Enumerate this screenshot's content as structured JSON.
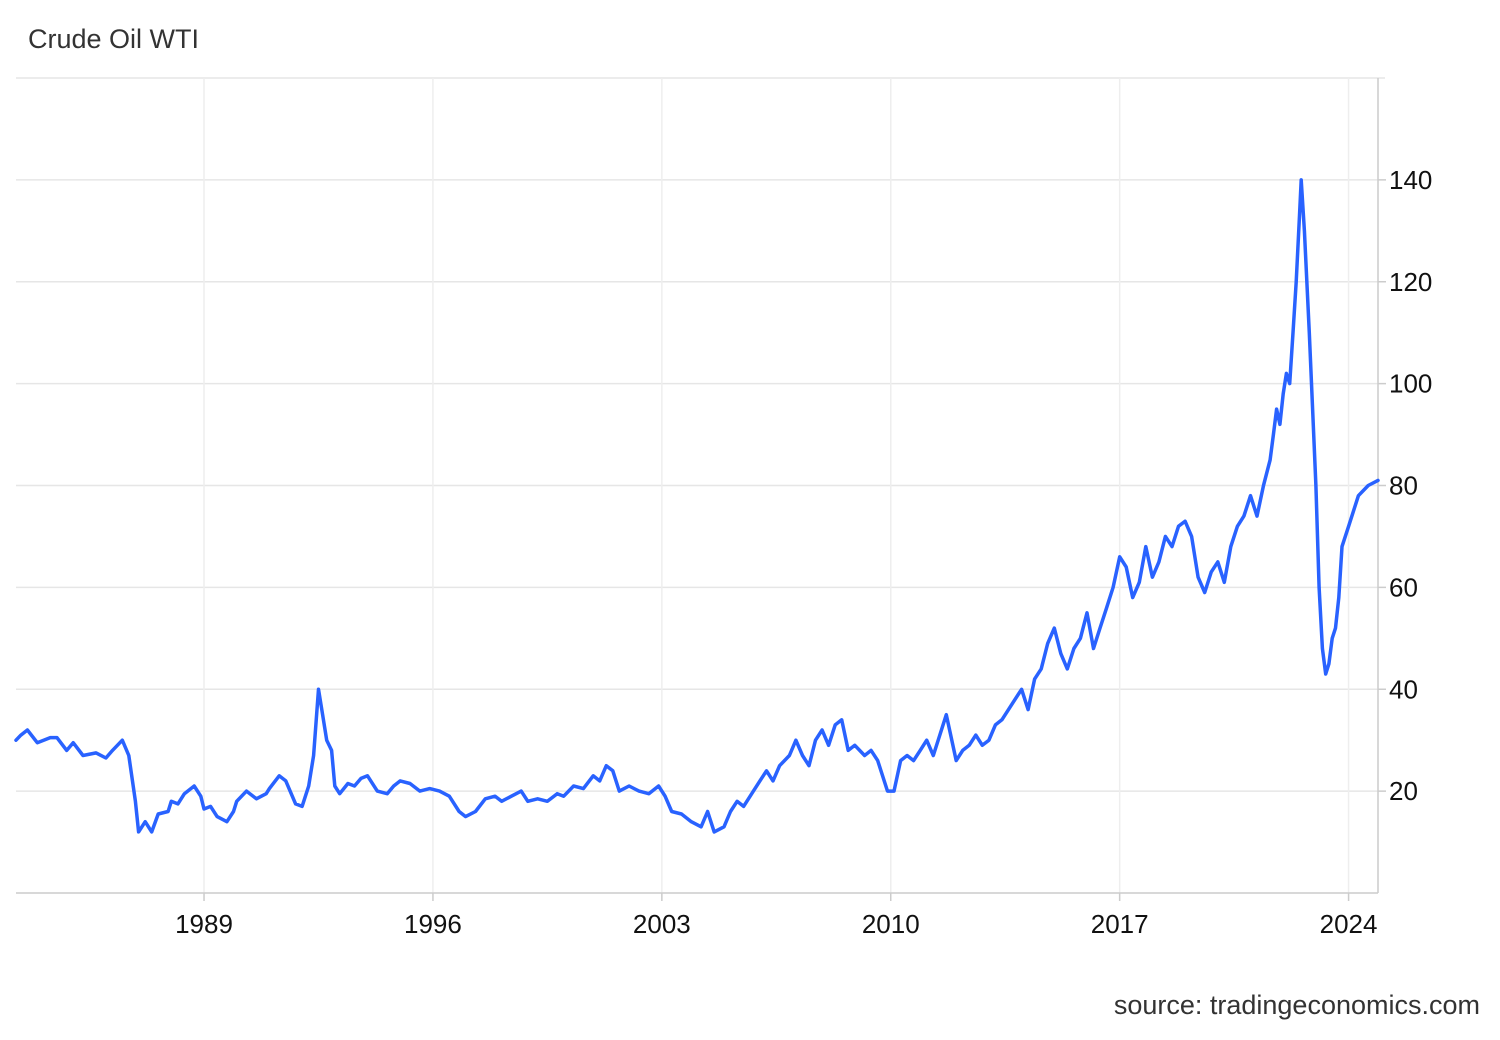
{
  "title": "Crude Oil WTI",
  "source_text": "source: tradingeconomics.com",
  "colors": {
    "line": "#2962ff",
    "grid": "#e6e6e6",
    "axis": "#cccccc",
    "text": "#111111"
  },
  "chart_data": {
    "type": "line",
    "title": "Crude Oil WTI",
    "xlabel": "",
    "ylabel": "",
    "x_range": [
      1983.25,
      2024.9
    ],
    "ylim": [
      0,
      160
    ],
    "x_ticks": [
      1989,
      1996,
      2003,
      2010,
      2017,
      2024
    ],
    "y_ticks": [
      20,
      40,
      60,
      80,
      100,
      120,
      140
    ],
    "grid": true,
    "legend": "none",
    "y_axis_side": "right",
    "series": [
      {
        "values_note": "",
        "points": [
          [
            1983.25,
            30
          ],
          [
            1983.4,
            31
          ],
          [
            1983.6,
            32
          ],
          [
            1983.9,
            29.5
          ],
          [
            1984.3,
            30.5
          ],
          [
            1984.5,
            30.5
          ],
          [
            1984.8,
            28
          ],
          [
            1985.0,
            29.5
          ],
          [
            1985.3,
            27
          ],
          [
            1985.7,
            27.5
          ],
          [
            1986.0,
            26.5
          ],
          [
            1986.2,
            28
          ],
          [
            1986.5,
            30
          ],
          [
            1986.7,
            27
          ],
          [
            1986.9,
            18
          ],
          [
            1987.0,
            12
          ],
          [
            1987.2,
            14
          ],
          [
            1987.4,
            12
          ],
          [
            1987.6,
            15.5
          ],
          [
            1987.9,
            16
          ],
          [
            1988.0,
            18
          ],
          [
            1988.2,
            17.5
          ],
          [
            1988.4,
            19.5
          ],
          [
            1988.7,
            21
          ],
          [
            1988.9,
            19
          ],
          [
            1989.0,
            16.5
          ],
          [
            1989.2,
            17
          ],
          [
            1989.4,
            15
          ],
          [
            1989.7,
            14
          ],
          [
            1989.9,
            16
          ],
          [
            1990.0,
            18
          ],
          [
            1990.3,
            20
          ],
          [
            1990.6,
            18.5
          ],
          [
            1990.9,
            19.5
          ],
          [
            1991.0,
            20.5
          ],
          [
            1991.3,
            23
          ],
          [
            1991.5,
            22
          ],
          [
            1991.8,
            17.5
          ],
          [
            1992.0,
            17
          ],
          [
            1992.2,
            21
          ],
          [
            1992.35,
            27
          ],
          [
            1992.5,
            40
          ],
          [
            1992.6,
            36
          ],
          [
            1992.75,
            30
          ],
          [
            1992.9,
            28
          ],
          [
            1993.0,
            21
          ],
          [
            1993.15,
            19.5
          ],
          [
            1993.4,
            21.5
          ],
          [
            1993.6,
            21
          ],
          [
            1993.8,
            22.5
          ],
          [
            1994.0,
            23
          ],
          [
            1994.3,
            20
          ],
          [
            1994.6,
            19.5
          ],
          [
            1994.8,
            21
          ],
          [
            1995.0,
            22
          ],
          [
            1995.3,
            21.5
          ],
          [
            1995.6,
            20
          ],
          [
            1995.9,
            20.5
          ],
          [
            1996.2,
            20
          ],
          [
            1996.5,
            19
          ],
          [
            1996.8,
            16
          ],
          [
            1997.0,
            15
          ],
          [
            1997.3,
            16
          ],
          [
            1997.6,
            18.5
          ],
          [
            1997.9,
            19
          ],
          [
            1998.1,
            18
          ],
          [
            1998.4,
            19
          ],
          [
            1998.7,
            20
          ],
          [
            1998.9,
            18
          ],
          [
            1999.2,
            18.5
          ],
          [
            1999.5,
            18
          ],
          [
            1999.8,
            19.5
          ],
          [
            2000.0,
            19
          ],
          [
            2000.3,
            21
          ],
          [
            2000.6,
            20.5
          ],
          [
            2000.9,
            23
          ],
          [
            2001.1,
            22
          ],
          [
            2001.3,
            25
          ],
          [
            2001.5,
            24
          ],
          [
            2001.7,
            20
          ],
          [
            2002.0,
            21
          ],
          [
            2002.3,
            20
          ],
          [
            2002.6,
            19.5
          ],
          [
            2002.9,
            21
          ],
          [
            2003.1,
            19
          ],
          [
            2003.3,
            16
          ],
          [
            2003.6,
            15.5
          ],
          [
            2003.9,
            14
          ],
          [
            2004.2,
            13
          ],
          [
            2004.4,
            16
          ],
          [
            2004.6,
            12
          ],
          [
            2004.9,
            13
          ],
          [
            2005.1,
            16
          ],
          [
            2005.3,
            18
          ],
          [
            2005.5,
            17
          ],
          [
            2005.8,
            20
          ],
          [
            2006.0,
            22
          ],
          [
            2006.2,
            24
          ],
          [
            2006.4,
            22
          ],
          [
            2006.6,
            25
          ],
          [
            2006.9,
            27
          ],
          [
            2007.1,
            30
          ],
          [
            2007.3,
            27
          ],
          [
            2007.5,
            25
          ],
          [
            2007.7,
            30
          ],
          [
            2007.9,
            32
          ],
          [
            2008.1,
            29
          ],
          [
            2008.3,
            33
          ],
          [
            2008.5,
            34
          ],
          [
            2008.7,
            28
          ],
          [
            2008.9,
            29
          ],
          [
            2009.2,
            27
          ],
          [
            2009.4,
            28
          ],
          [
            2009.6,
            26
          ],
          [
            2009.9,
            20
          ],
          [
            2010.1,
            20
          ],
          [
            2010.3,
            26
          ],
          [
            2010.5,
            27
          ],
          [
            2010.7,
            26
          ],
          [
            2010.9,
            28
          ],
          [
            2011.1,
            30
          ],
          [
            2011.3,
            27
          ],
          [
            2011.5,
            31
          ],
          [
            2011.7,
            35
          ],
          [
            2011.8,
            32
          ],
          [
            2012.0,
            26
          ],
          [
            2012.2,
            28
          ],
          [
            2012.4,
            29
          ],
          [
            2012.6,
            31
          ],
          [
            2012.8,
            29
          ],
          [
            2013.0,
            30
          ],
          [
            2013.2,
            33
          ],
          [
            2013.4,
            34
          ],
          [
            2013.6,
            36
          ],
          [
            2013.8,
            38
          ],
          [
            2014.0,
            40
          ],
          [
            2014.2,
            36
          ],
          [
            2014.4,
            42
          ],
          [
            2014.6,
            44
          ],
          [
            2014.8,
            49
          ],
          [
            2015.0,
            52
          ],
          [
            2015.2,
            47
          ],
          [
            2015.4,
            44
          ],
          [
            2015.6,
            48
          ],
          [
            2015.8,
            50
          ],
          [
            2016.0,
            55
          ],
          [
            2016.2,
            48
          ],
          [
            2016.4,
            52
          ],
          [
            2016.6,
            56
          ],
          [
            2016.8,
            60
          ],
          [
            2017.0,
            66
          ],
          [
            2017.2,
            64
          ],
          [
            2017.4,
            58
          ],
          [
            2017.6,
            61
          ],
          [
            2017.8,
            68
          ],
          [
            2018.0,
            62
          ],
          [
            2018.2,
            65
          ],
          [
            2018.4,
            70
          ],
          [
            2018.6,
            68
          ],
          [
            2018.8,
            72
          ],
          [
            2019.0,
            73
          ],
          [
            2019.2,
            70
          ],
          [
            2019.4,
            62
          ],
          [
            2019.6,
            59
          ],
          [
            2019.8,
            63
          ],
          [
            2020.0,
            65
          ],
          [
            2020.2,
            61
          ],
          [
            2020.4,
            68
          ],
          [
            2020.6,
            72
          ],
          [
            2020.8,
            74
          ],
          [
            2021.0,
            78
          ],
          [
            2021.2,
            74
          ],
          [
            2021.4,
            80
          ],
          [
            2021.6,
            85
          ],
          [
            2021.7,
            90
          ],
          [
            2021.8,
            95
          ],
          [
            2021.9,
            92
          ],
          [
            2022.0,
            98
          ],
          [
            2022.1,
            102
          ],
          [
            2022.2,
            100
          ],
          [
            2022.3,
            110
          ],
          [
            2022.4,
            120
          ],
          [
            2022.5,
            133
          ],
          [
            2022.55,
            140
          ],
          [
            2022.65,
            130
          ],
          [
            2022.8,
            110
          ],
          [
            2022.9,
            95
          ],
          [
            2023.0,
            80
          ],
          [
            2023.1,
            60
          ],
          [
            2023.2,
            48
          ],
          [
            2023.3,
            43
          ],
          [
            2023.4,
            45
          ],
          [
            2023.5,
            50
          ],
          [
            2023.6,
            52
          ],
          [
            2023.7,
            58
          ],
          [
            2023.8,
            68
          ],
          [
            2023.9,
            70
          ],
          [
            2024.0,
            72
          ],
          [
            2024.3,
            78
          ],
          [
            2024.6,
            80
          ],
          [
            2024.9,
            81
          ]
        ]
      }
    ]
  }
}
